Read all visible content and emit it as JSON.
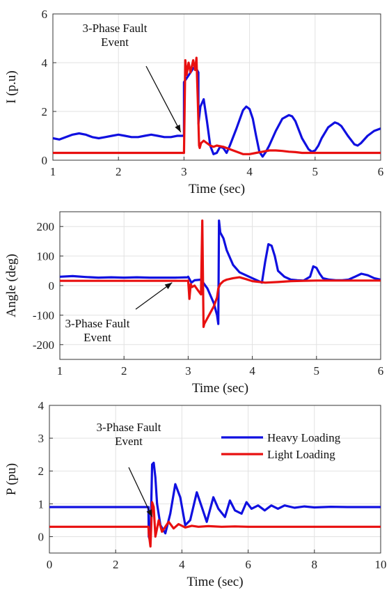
{
  "colors": {
    "heavy": "#1010e0",
    "light": "#e81010"
  },
  "chart_data": [
    {
      "type": "line",
      "xlabel": "Time (sec)",
      "ylabel": "I (p.u)",
      "xlim": [
        1,
        6
      ],
      "ylim": [
        0,
        6
      ],
      "xticks": [
        "1",
        "2",
        "3",
        "4",
        "5",
        "6"
      ],
      "yticks": [
        "0",
        "2",
        "4",
        "6"
      ],
      "grid": true,
      "annotation": {
        "lines": [
          "3-Phase Fault",
          "Event"
        ],
        "arrow_to": [
          2.95,
          1.15
        ]
      },
      "series": [
        {
          "key": "heavy",
          "x": [
            1.0,
            1.1,
            1.2,
            1.3,
            1.4,
            1.5,
            1.6,
            1.7,
            1.8,
            1.9,
            2.0,
            2.1,
            2.2,
            2.3,
            2.4,
            2.5,
            2.6,
            2.7,
            2.8,
            2.9,
            2.99,
            3.0,
            3.0,
            3.05,
            3.1,
            3.15,
            3.2,
            3.22,
            3.22,
            3.25,
            3.3,
            3.35,
            3.4,
            3.45,
            3.5,
            3.55,
            3.6,
            3.65,
            3.7,
            3.8,
            3.9,
            3.95,
            4.0,
            4.05,
            4.1,
            4.15,
            4.2,
            4.25,
            4.3,
            4.4,
            4.5,
            4.6,
            4.65,
            4.7,
            4.8,
            4.9,
            4.95,
            5.0,
            5.05,
            5.1,
            5.2,
            5.3,
            5.35,
            5.4,
            5.5,
            5.6,
            5.65,
            5.7,
            5.8,
            5.9,
            6.0
          ],
          "y": [
            0.9,
            0.85,
            0.95,
            1.05,
            1.1,
            1.05,
            0.95,
            0.9,
            0.95,
            1.0,
            1.05,
            1.0,
            0.95,
            0.95,
            1.0,
            1.05,
            1.0,
            0.95,
            0.95,
            1.0,
            1.0,
            1.0,
            3.2,
            3.4,
            3.6,
            3.8,
            3.7,
            3.6,
            1.5,
            2.2,
            2.5,
            1.6,
            0.6,
            0.25,
            0.3,
            0.55,
            0.5,
            0.3,
            0.6,
            1.3,
            2.05,
            2.2,
            2.1,
            1.7,
            1.0,
            0.35,
            0.15,
            0.35,
            0.6,
            1.2,
            1.7,
            1.85,
            1.8,
            1.6,
            0.9,
            0.45,
            0.35,
            0.4,
            0.6,
            0.9,
            1.35,
            1.55,
            1.5,
            1.4,
            1.0,
            0.65,
            0.6,
            0.7,
            1.0,
            1.2,
            1.3
          ]
        },
        {
          "key": "light",
          "x": [
            1.0,
            2.99,
            3.0,
            3.02,
            3.04,
            3.07,
            3.1,
            3.14,
            3.17,
            3.19,
            3.21,
            3.23,
            3.24,
            3.26,
            3.3,
            3.35,
            3.4,
            3.45,
            3.5,
            3.6,
            3.7,
            3.8,
            3.9,
            4.0,
            4.1,
            4.2,
            4.3,
            4.4,
            4.5,
            4.6,
            4.7,
            4.8,
            4.9,
            5.0,
            5.5,
            6.0
          ],
          "y": [
            0.3,
            0.3,
            0.3,
            4.1,
            3.5,
            4.0,
            3.6,
            4.1,
            3.7,
            4.2,
            2.5,
            0.6,
            0.5,
            0.7,
            0.8,
            0.7,
            0.6,
            0.55,
            0.6,
            0.55,
            0.45,
            0.35,
            0.25,
            0.25,
            0.3,
            0.35,
            0.4,
            0.4,
            0.38,
            0.35,
            0.33,
            0.3,
            0.3,
            0.3,
            0.3,
            0.3
          ]
        }
      ]
    },
    {
      "type": "line",
      "xlabel": "Time (sec)",
      "ylabel": "Angle (deg)",
      "xlim": [
        1,
        6
      ],
      "ylim": [
        -250,
        250
      ],
      "xticks": [
        "1",
        "2",
        "3",
        "4",
        "5",
        "6"
      ],
      "yticks": [
        "-200",
        "-100",
        "0",
        "100",
        "200"
      ],
      "grid": true,
      "annotation": {
        "lines": [
          "3-Phase Fault",
          "Event"
        ],
        "arrow_to": [
          2.75,
          10
        ]
      },
      "series": [
        {
          "key": "heavy",
          "x": [
            1.0,
            1.2,
            1.4,
            1.6,
            1.8,
            2.0,
            2.2,
            2.4,
            2.6,
            2.8,
            2.99,
            3.0,
            3.05,
            3.1,
            3.2,
            3.3,
            3.4,
            3.45,
            3.47,
            3.48,
            3.5,
            3.55,
            3.6,
            3.7,
            3.8,
            3.9,
            4.0,
            4.1,
            4.15,
            4.2,
            4.25,
            4.3,
            4.35,
            4.4,
            4.5,
            4.6,
            4.7,
            4.8,
            4.9,
            4.95,
            5.0,
            5.05,
            5.1,
            5.2,
            5.3,
            5.4,
            5.5,
            5.6,
            5.7,
            5.8,
            5.9,
            6.0
          ],
          "y": [
            30,
            32,
            29,
            27,
            28,
            27,
            28,
            27,
            27,
            27,
            28,
            30,
            10,
            18,
            20,
            -10,
            -60,
            -100,
            -130,
            220,
            180,
            160,
            120,
            70,
            45,
            35,
            25,
            15,
            10,
            80,
            140,
            135,
            100,
            50,
            30,
            20,
            18,
            17,
            30,
            65,
            60,
            40,
            25,
            20,
            18,
            18,
            20,
            30,
            40,
            35,
            25,
            20
          ]
        },
        {
          "key": "light",
          "x": [
            1.0,
            2.99,
            3.0,
            3.02,
            3.04,
            3.06,
            3.1,
            3.15,
            3.2,
            3.22,
            3.24,
            3.25,
            3.3,
            3.35,
            3.4,
            3.45,
            3.47,
            3.5,
            3.55,
            3.6,
            3.7,
            3.8,
            3.9,
            4.0,
            4.2,
            4.4,
            4.6,
            4.8,
            5.0,
            5.5,
            6.0
          ],
          "y": [
            16,
            16,
            17,
            -45,
            5,
            -5,
            0,
            -15,
            -30,
            220,
            -140,
            -130,
            -110,
            -90,
            -70,
            -40,
            -10,
            5,
            15,
            20,
            25,
            28,
            22,
            15,
            10,
            12,
            15,
            16,
            17,
            17,
            17
          ]
        }
      ]
    },
    {
      "type": "line",
      "xlabel": "Time (sec)",
      "ylabel": "P (pu)",
      "xlim": [
        0,
        10
      ],
      "ylim": [
        -0.5,
        4
      ],
      "xticks": [
        "0",
        "2",
        "4",
        "6",
        "8",
        "10"
      ],
      "yticks": [
        "0",
        "1",
        "2",
        "3",
        "4"
      ],
      "grid": true,
      "annotation": {
        "lines": [
          "3-Phase Fault",
          "Event"
        ],
        "arrow_to": [
          3.1,
          0.6
        ]
      },
      "legend": {
        "position": "top-right",
        "entries": [
          {
            "key": "heavy",
            "label": "Heavy Loading"
          },
          {
            "key": "light",
            "label": "Light Loading"
          }
        ]
      },
      "series": [
        {
          "key": "heavy",
          "x": [
            0.0,
            2.99,
            3.0,
            3.05,
            3.1,
            3.15,
            3.2,
            3.25,
            3.35,
            3.5,
            3.65,
            3.8,
            3.95,
            4.1,
            4.25,
            4.45,
            4.6,
            4.75,
            4.95,
            5.1,
            5.3,
            5.45,
            5.6,
            5.8,
            5.95,
            6.1,
            6.3,
            6.5,
            6.7,
            6.9,
            7.1,
            7.4,
            7.7,
            8.0,
            8.5,
            9.0,
            10.0
          ],
          "y": [
            0.9,
            0.9,
            0.0,
            -0.15,
            2.2,
            2.25,
            1.8,
            1.0,
            0.35,
            0.1,
            0.7,
            1.6,
            1.2,
            0.35,
            0.5,
            1.35,
            0.9,
            0.45,
            1.2,
            0.85,
            0.6,
            1.1,
            0.8,
            0.7,
            1.05,
            0.85,
            0.95,
            0.8,
            0.95,
            0.85,
            0.95,
            0.88,
            0.92,
            0.89,
            0.91,
            0.9,
            0.9
          ]
        },
        {
          "key": "light",
          "x": [
            0.0,
            2.99,
            3.0,
            3.05,
            3.1,
            3.15,
            3.2,
            3.3,
            3.4,
            3.5,
            3.6,
            3.75,
            3.9,
            4.1,
            4.3,
            4.5,
            4.8,
            5.2,
            5.6,
            6.0,
            7.0,
            8.0,
            10.0
          ],
          "y": [
            0.3,
            0.3,
            0.1,
            -0.3,
            1.05,
            0.9,
            0.0,
            0.5,
            0.15,
            0.3,
            0.45,
            0.25,
            0.38,
            0.28,
            0.33,
            0.3,
            0.32,
            0.3,
            0.31,
            0.3,
            0.3,
            0.3,
            0.3
          ]
        }
      ]
    }
  ]
}
